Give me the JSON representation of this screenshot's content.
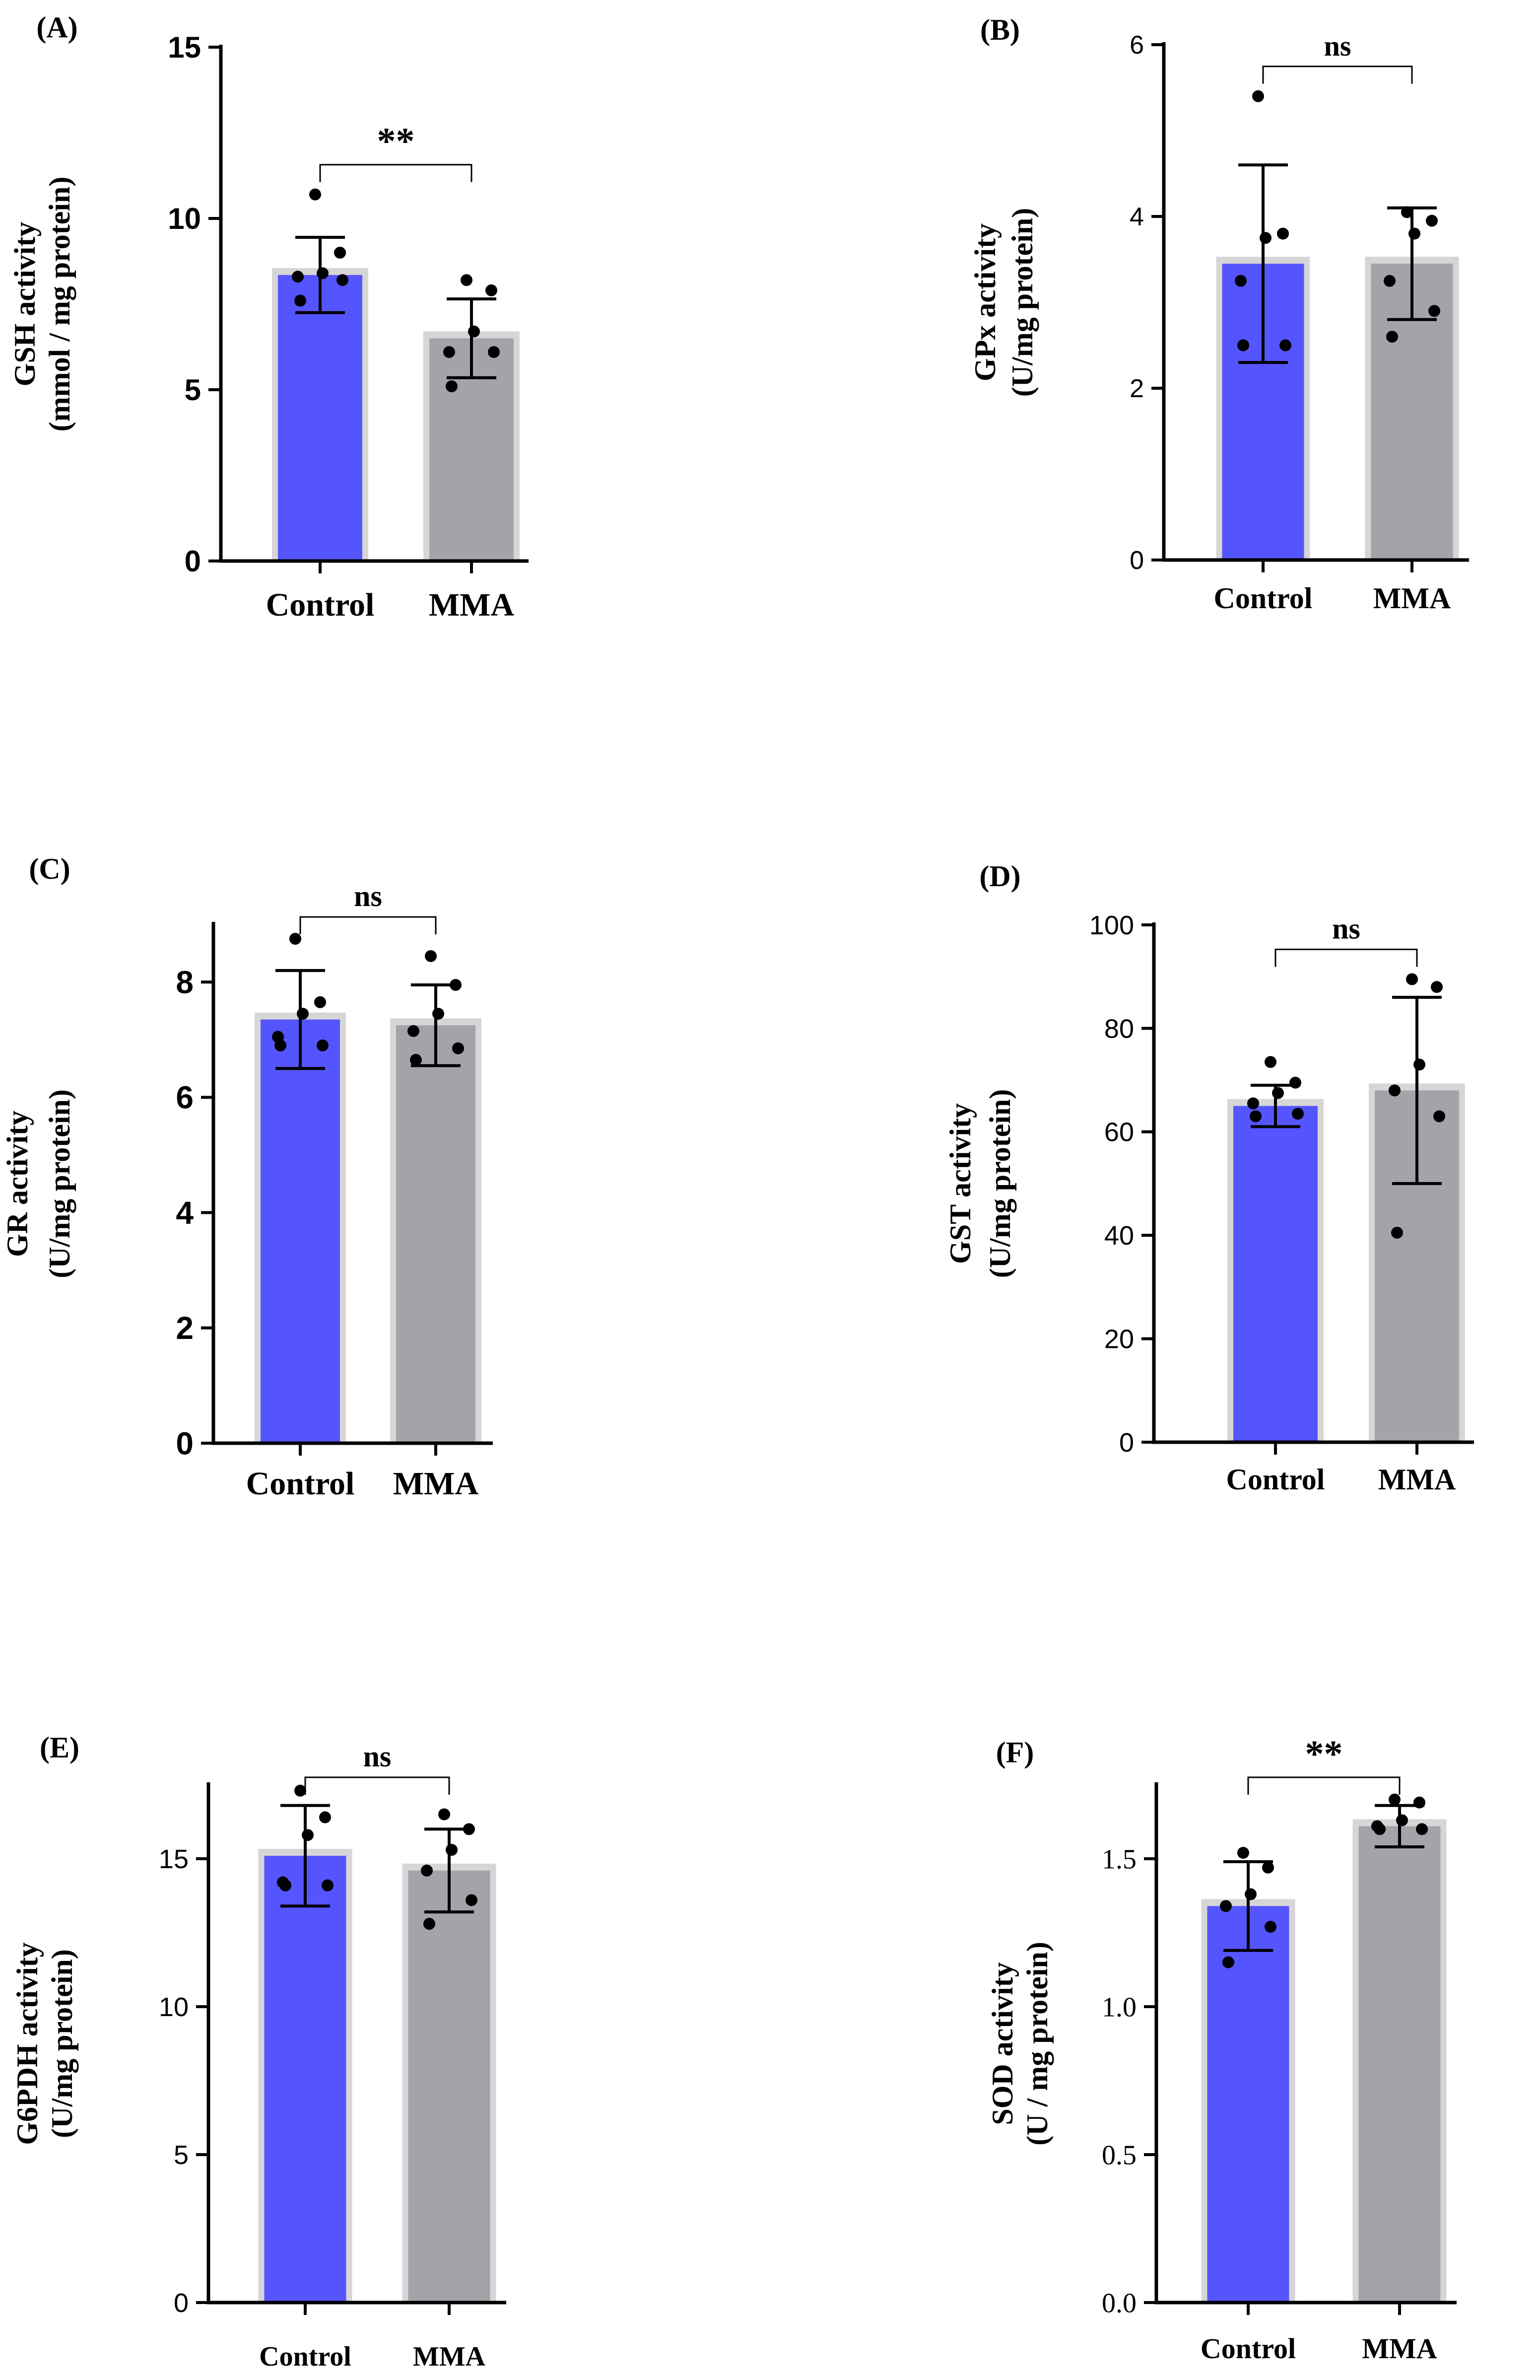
{
  "figure": {
    "background": "#ffffff"
  },
  "colors": {
    "control": "#5555ff",
    "mma": "#a3a3aa",
    "bar_halo": "#d6d6d6",
    "axis": "#000000"
  },
  "chart_data": [
    {
      "panel": "(A)",
      "type": "bar",
      "categories": [
        "Control",
        "MMA"
      ],
      "values": [
        8.35,
        6.5
      ],
      "errors": [
        1.1,
        1.15
      ],
      "points": [
        [
          10.7,
          9.0,
          8.4,
          8.3,
          8.2,
          7.6
        ],
        [
          8.2,
          7.9,
          6.7,
          6.1,
          6.1,
          5.1
        ]
      ],
      "ylabel": [
        "GSH activity",
        "(mmol / mg protein)"
      ],
      "ylim": [
        0,
        15
      ],
      "yticks": [
        "0",
        "5",
        "10",
        "15"
      ],
      "tick_values": [
        0,
        5,
        10,
        15
      ],
      "significance": "**",
      "tick_bold": true,
      "tick_serif": false
    },
    {
      "panel": "(B)",
      "type": "bar",
      "categories": [
        "Control",
        "MMA"
      ],
      "values": [
        3.45,
        3.45
      ],
      "errors": [
        1.15,
        0.65
      ],
      "points": [
        [
          5.4,
          3.8,
          3.75,
          3.25,
          2.5,
          2.5
        ],
        [
          4.05,
          3.95,
          3.8,
          3.25,
          2.9,
          2.6
        ]
      ],
      "ylabel": [
        "GPx activity",
        "(U/mg protein)"
      ],
      "ylim": [
        0,
        6
      ],
      "yticks": [
        "0",
        "2",
        "4",
        "6"
      ],
      "tick_values": [
        0,
        2,
        4,
        6
      ],
      "significance": "ns",
      "tick_bold": false,
      "tick_serif": false
    },
    {
      "panel": "(C)",
      "type": "bar",
      "categories": [
        "Control",
        "MMA"
      ],
      "values": [
        7.35,
        7.25
      ],
      "errors": [
        0.85,
        0.7
      ],
      "points": [
        [
          8.75,
          7.65,
          7.45,
          7.05,
          6.9,
          6.9
        ],
        [
          8.45,
          7.95,
          7.45,
          7.15,
          6.85,
          6.65
        ]
      ],
      "ylabel": [
        "GR activity",
        "(U/mg protein)"
      ],
      "ylim": [
        0,
        9
      ],
      "yticks": [
        "0",
        "2",
        "4",
        "6",
        "8"
      ],
      "tick_values": [
        0,
        2,
        4,
        6,
        8
      ],
      "significance": "ns",
      "tick_bold": true,
      "tick_serif": false
    },
    {
      "panel": "(D)",
      "type": "bar",
      "categories": [
        "Control",
        "MMA"
      ],
      "values": [
        65.0,
        68.0
      ],
      "errors": [
        4.0,
        18.0
      ],
      "points": [
        [
          73.5,
          69.5,
          67.5,
          65.5,
          63.5,
          63.0
        ],
        [
          89.5,
          88.0,
          73.0,
          68.0,
          63.0,
          40.5
        ]
      ],
      "ylabel": [
        "GST activity",
        "(U/mg protein)"
      ],
      "ylim": [
        0,
        100
      ],
      "yticks": [
        "0",
        "20",
        "40",
        "60",
        "80",
        "100"
      ],
      "tick_values": [
        0,
        20,
        40,
        60,
        80,
        100
      ],
      "significance": "ns",
      "tick_bold": false,
      "tick_serif": false
    },
    {
      "panel": "(E)",
      "type": "bar",
      "categories": [
        "Control",
        "MMA"
      ],
      "values": [
        15.1,
        14.6
      ],
      "errors": [
        1.7,
        1.4
      ],
      "points": [
        [
          17.3,
          16.4,
          15.8,
          14.2,
          14.1,
          14.1
        ],
        [
          16.5,
          16.0,
          15.3,
          14.6,
          13.6,
          12.8
        ]
      ],
      "ylabel": [
        "G6PDH activity",
        "(U/mg protein)"
      ],
      "ylim": [
        0,
        17.5
      ],
      "yticks": [
        "0",
        "5",
        "10",
        "15"
      ],
      "tick_values": [
        0,
        5,
        10,
        15
      ],
      "significance": "ns",
      "tick_bold": false,
      "tick_serif": false
    },
    {
      "panel": "(F)",
      "type": "bar",
      "categories": [
        "Control",
        "MMA"
      ],
      "values": [
        1.34,
        1.61
      ],
      "errors": [
        0.15,
        0.07
      ],
      "points": [
        [
          1.52,
          1.47,
          1.38,
          1.34,
          1.27,
          1.15
        ],
        [
          1.7,
          1.69,
          1.63,
          1.61,
          1.6,
          1.6
        ]
      ],
      "ylabel": [
        "SOD activity",
        "(U / mg protein)"
      ],
      "ylim": [
        0,
        1.75
      ],
      "yticks": [
        "0.0",
        "0.5",
        "1.0",
        "1.5"
      ],
      "tick_values": [
        0,
        0.5,
        1.0,
        1.5
      ],
      "significance": "**",
      "tick_bold": false,
      "tick_serif": true
    }
  ]
}
